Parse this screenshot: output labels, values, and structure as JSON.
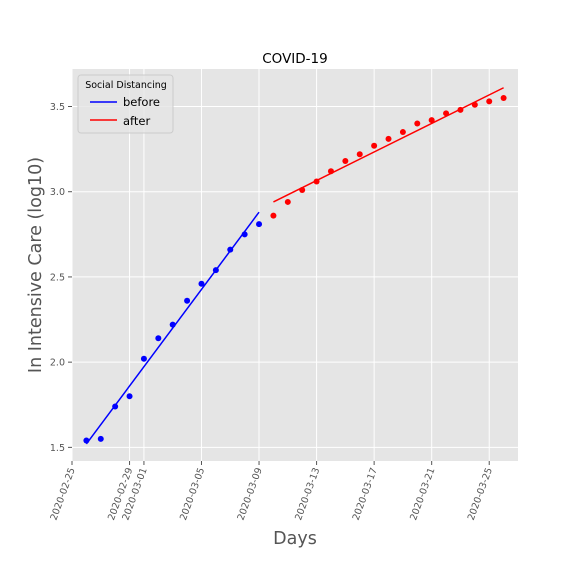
{
  "chart_data": {
    "type": "line",
    "title": "COVID-19",
    "xlabel": "Days",
    "ylabel": "In Intensive Care (log10)",
    "x_type": "date",
    "xlim": [
      "2020-02-25",
      "2020-03-27"
    ],
    "ylim": [
      1.42,
      3.72
    ],
    "x_ticks": [
      "2020-02-25",
      "2020-02-29",
      "2020-03-01",
      "2020-03-05",
      "2020-03-09",
      "2020-03-13",
      "2020-03-17",
      "2020-03-21",
      "2020-03-25"
    ],
    "y_ticks": [
      "1.5",
      "2.0",
      "2.5",
      "3.0",
      "3.5"
    ],
    "grid": true,
    "legend_title": "Social Distancing",
    "legend_position": "top-left",
    "series": [
      {
        "name": "before",
        "color": "#0000ff",
        "points": [
          {
            "x": "2020-02-26",
            "y": 1.54
          },
          {
            "x": "2020-02-27",
            "y": 1.55
          },
          {
            "x": "2020-02-28",
            "y": 1.74
          },
          {
            "x": "2020-02-29",
            "y": 1.8
          },
          {
            "x": "2020-03-01",
            "y": 2.02
          },
          {
            "x": "2020-03-02",
            "y": 2.14
          },
          {
            "x": "2020-03-03",
            "y": 2.22
          },
          {
            "x": "2020-03-04",
            "y": 2.36
          },
          {
            "x": "2020-03-05",
            "y": 2.46
          },
          {
            "x": "2020-03-06",
            "y": 2.54
          },
          {
            "x": "2020-03-07",
            "y": 2.66
          },
          {
            "x": "2020-03-08",
            "y": 2.75
          },
          {
            "x": "2020-03-09",
            "y": 2.81
          }
        ],
        "fit": [
          {
            "x": "2020-02-26",
            "y": 1.52
          },
          {
            "x": "2020-03-09",
            "y": 2.88
          }
        ]
      },
      {
        "name": "after",
        "color": "#ff0000",
        "points": [
          {
            "x": "2020-03-10",
            "y": 2.86
          },
          {
            "x": "2020-03-11",
            "y": 2.94
          },
          {
            "x": "2020-03-12",
            "y": 3.01
          },
          {
            "x": "2020-03-13",
            "y": 3.06
          },
          {
            "x": "2020-03-14",
            "y": 3.12
          },
          {
            "x": "2020-03-15",
            "y": 3.18
          },
          {
            "x": "2020-03-16",
            "y": 3.22
          },
          {
            "x": "2020-03-17",
            "y": 3.27
          },
          {
            "x": "2020-03-18",
            "y": 3.31
          },
          {
            "x": "2020-03-19",
            "y": 3.35
          },
          {
            "x": "2020-03-20",
            "y": 3.4
          },
          {
            "x": "2020-03-21",
            "y": 3.42
          },
          {
            "x": "2020-03-22",
            "y": 3.46
          },
          {
            "x": "2020-03-23",
            "y": 3.48
          },
          {
            "x": "2020-03-24",
            "y": 3.51
          },
          {
            "x": "2020-03-25",
            "y": 3.53
          },
          {
            "x": "2020-03-26",
            "y": 3.55
          }
        ],
        "fit": [
          {
            "x": "2020-03-10",
            "y": 2.94
          },
          {
            "x": "2020-03-26",
            "y": 3.61
          }
        ]
      }
    ]
  }
}
